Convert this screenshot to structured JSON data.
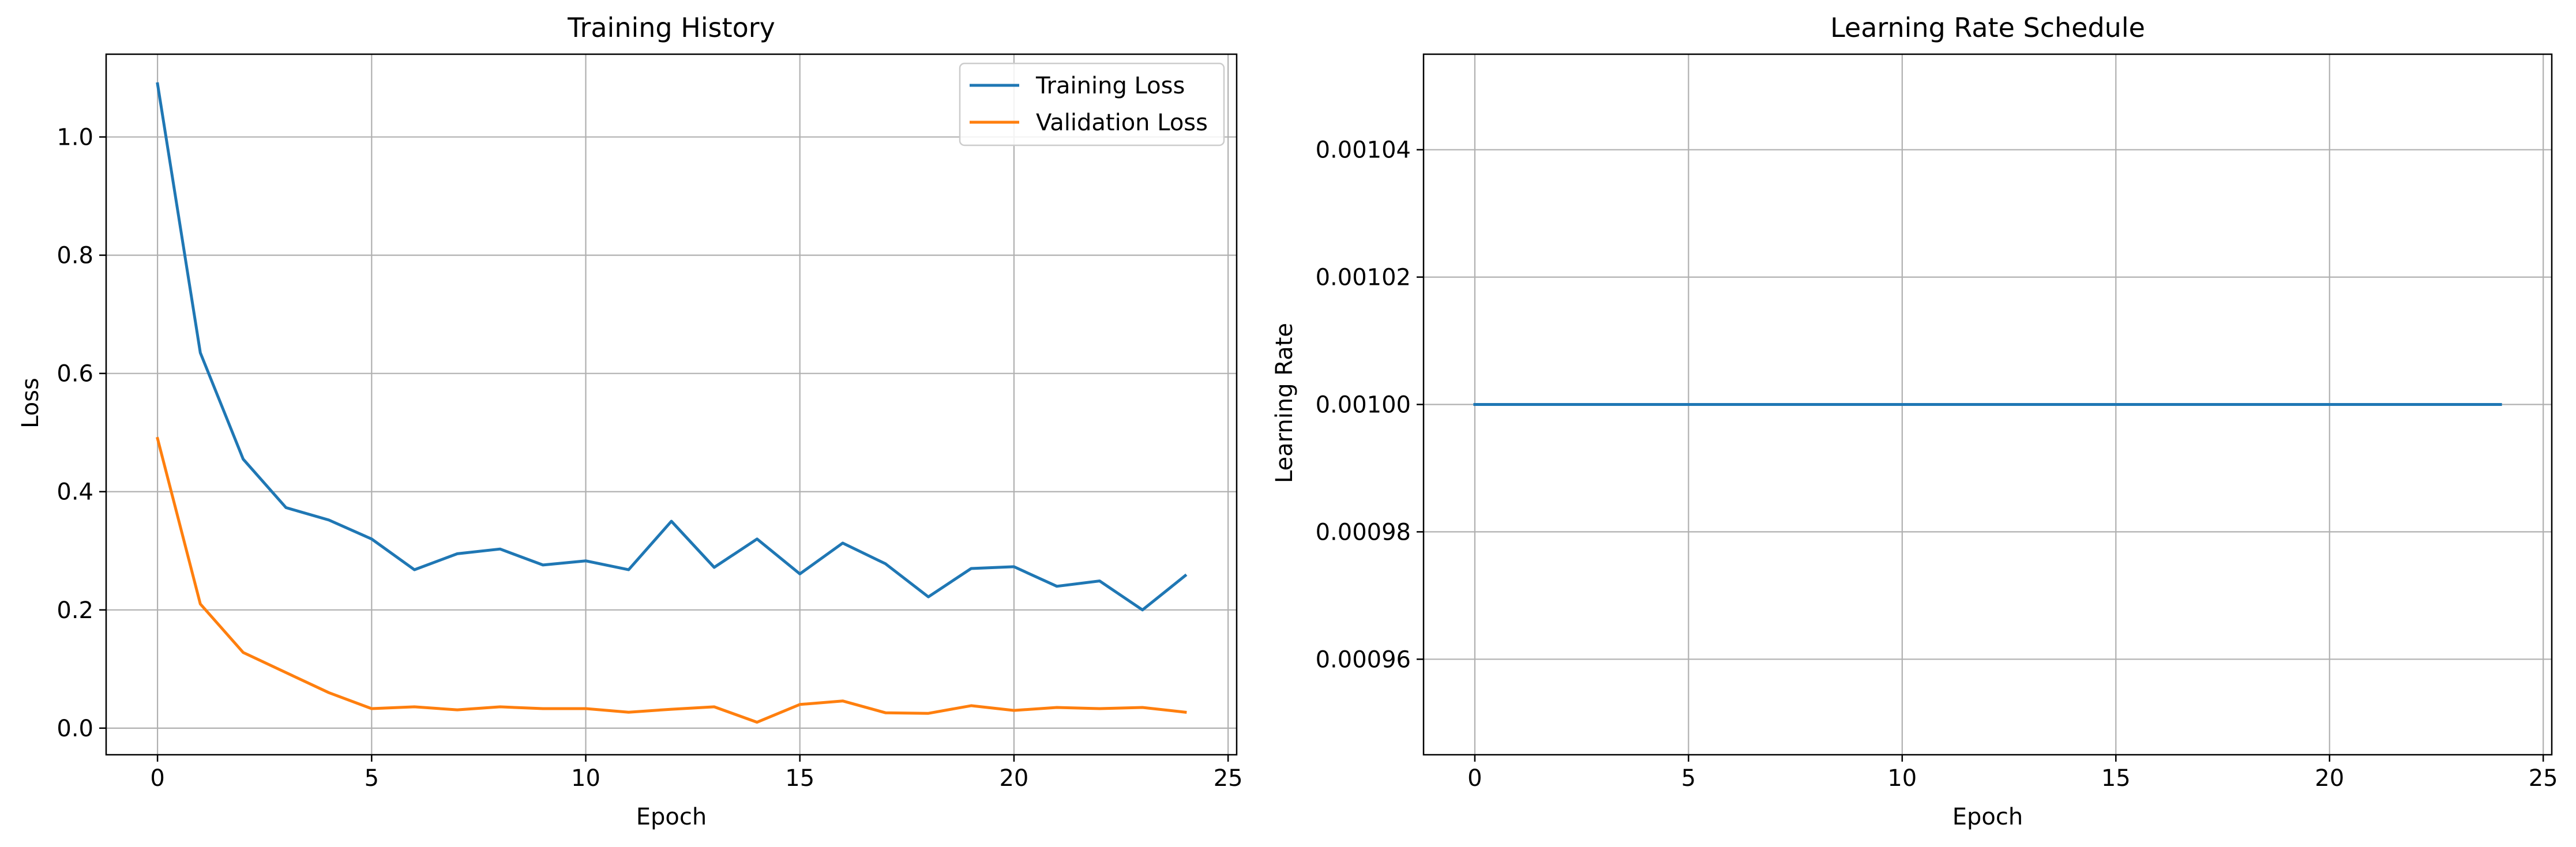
{
  "colors": {
    "training": "#1f77b4",
    "validation": "#ff7f0e",
    "grid": "#b0b0b0",
    "axes": "#000000",
    "background": "#ffffff"
  },
  "chart_data": [
    {
      "type": "line",
      "title": "Training History",
      "xlabel": "Epoch",
      "ylabel": "Loss",
      "xlim": [
        -1.2,
        25.2
      ],
      "ylim": [
        -0.045,
        1.14
      ],
      "xticks": [
        0,
        5,
        10,
        15,
        20,
        25
      ],
      "xtick_labels": [
        "0",
        "5",
        "10",
        "15",
        "20",
        "25"
      ],
      "yticks": [
        0.0,
        0.2,
        0.4,
        0.6,
        0.8,
        1.0
      ],
      "ytick_labels": [
        "0.0",
        "0.2",
        "0.4",
        "0.6",
        "0.8",
        "1.0"
      ],
      "grid": true,
      "legend": "upper-right",
      "x": [
        0,
        1,
        2,
        3,
        4,
        5,
        6,
        7,
        8,
        9,
        10,
        11,
        12,
        13,
        14,
        15,
        16,
        17,
        18,
        19,
        20,
        21,
        22,
        23,
        24
      ],
      "series": [
        {
          "name": "Training Loss",
          "color": "#1f77b4",
          "values": [
            1.09,
            0.635,
            0.455,
            0.373,
            0.352,
            0.32,
            0.268,
            0.295,
            0.303,
            0.276,
            0.283,
            0.268,
            0.35,
            0.272,
            0.32,
            0.261,
            0.313,
            0.278,
            0.222,
            0.27,
            0.273,
            0.24,
            0.249,
            0.2,
            0.258
          ]
        },
        {
          "name": "Validation Loss",
          "color": "#ff7f0e",
          "values": [
            0.49,
            0.21,
            0.128,
            0.094,
            0.06,
            0.033,
            0.036,
            0.031,
            0.036,
            0.033,
            0.033,
            0.027,
            0.032,
            0.036,
            0.01,
            0.04,
            0.046,
            0.026,
            0.025,
            0.038,
            0.03,
            0.035,
            0.033,
            0.035,
            0.027
          ]
        }
      ]
    },
    {
      "type": "line",
      "title": "Learning Rate Schedule",
      "xlabel": "Epoch",
      "ylabel": "Learning Rate",
      "xlim": [
        -1.2,
        25.2
      ],
      "ylim": [
        0.000945,
        0.001055
      ],
      "xticks": [
        0,
        5,
        10,
        15,
        20,
        25
      ],
      "xtick_labels": [
        "0",
        "5",
        "10",
        "15",
        "20",
        "25"
      ],
      "yticks": [
        0.00096,
        0.00098,
        0.001,
        0.00102,
        0.00104
      ],
      "ytick_labels": [
        "0.00096",
        "0.00098",
        "0.00100",
        "0.00102",
        "0.00104"
      ],
      "grid": true,
      "x": [
        0,
        1,
        2,
        3,
        4,
        5,
        6,
        7,
        8,
        9,
        10,
        11,
        12,
        13,
        14,
        15,
        16,
        17,
        18,
        19,
        20,
        21,
        22,
        23,
        24
      ],
      "series": [
        {
          "color": "#1f77b4",
          "values": [
            0.001,
            0.001,
            0.001,
            0.001,
            0.001,
            0.001,
            0.001,
            0.001,
            0.001,
            0.001,
            0.001,
            0.001,
            0.001,
            0.001,
            0.001,
            0.001,
            0.001,
            0.001,
            0.001,
            0.001,
            0.001,
            0.001,
            0.001,
            0.001,
            0.001
          ]
        }
      ]
    }
  ]
}
